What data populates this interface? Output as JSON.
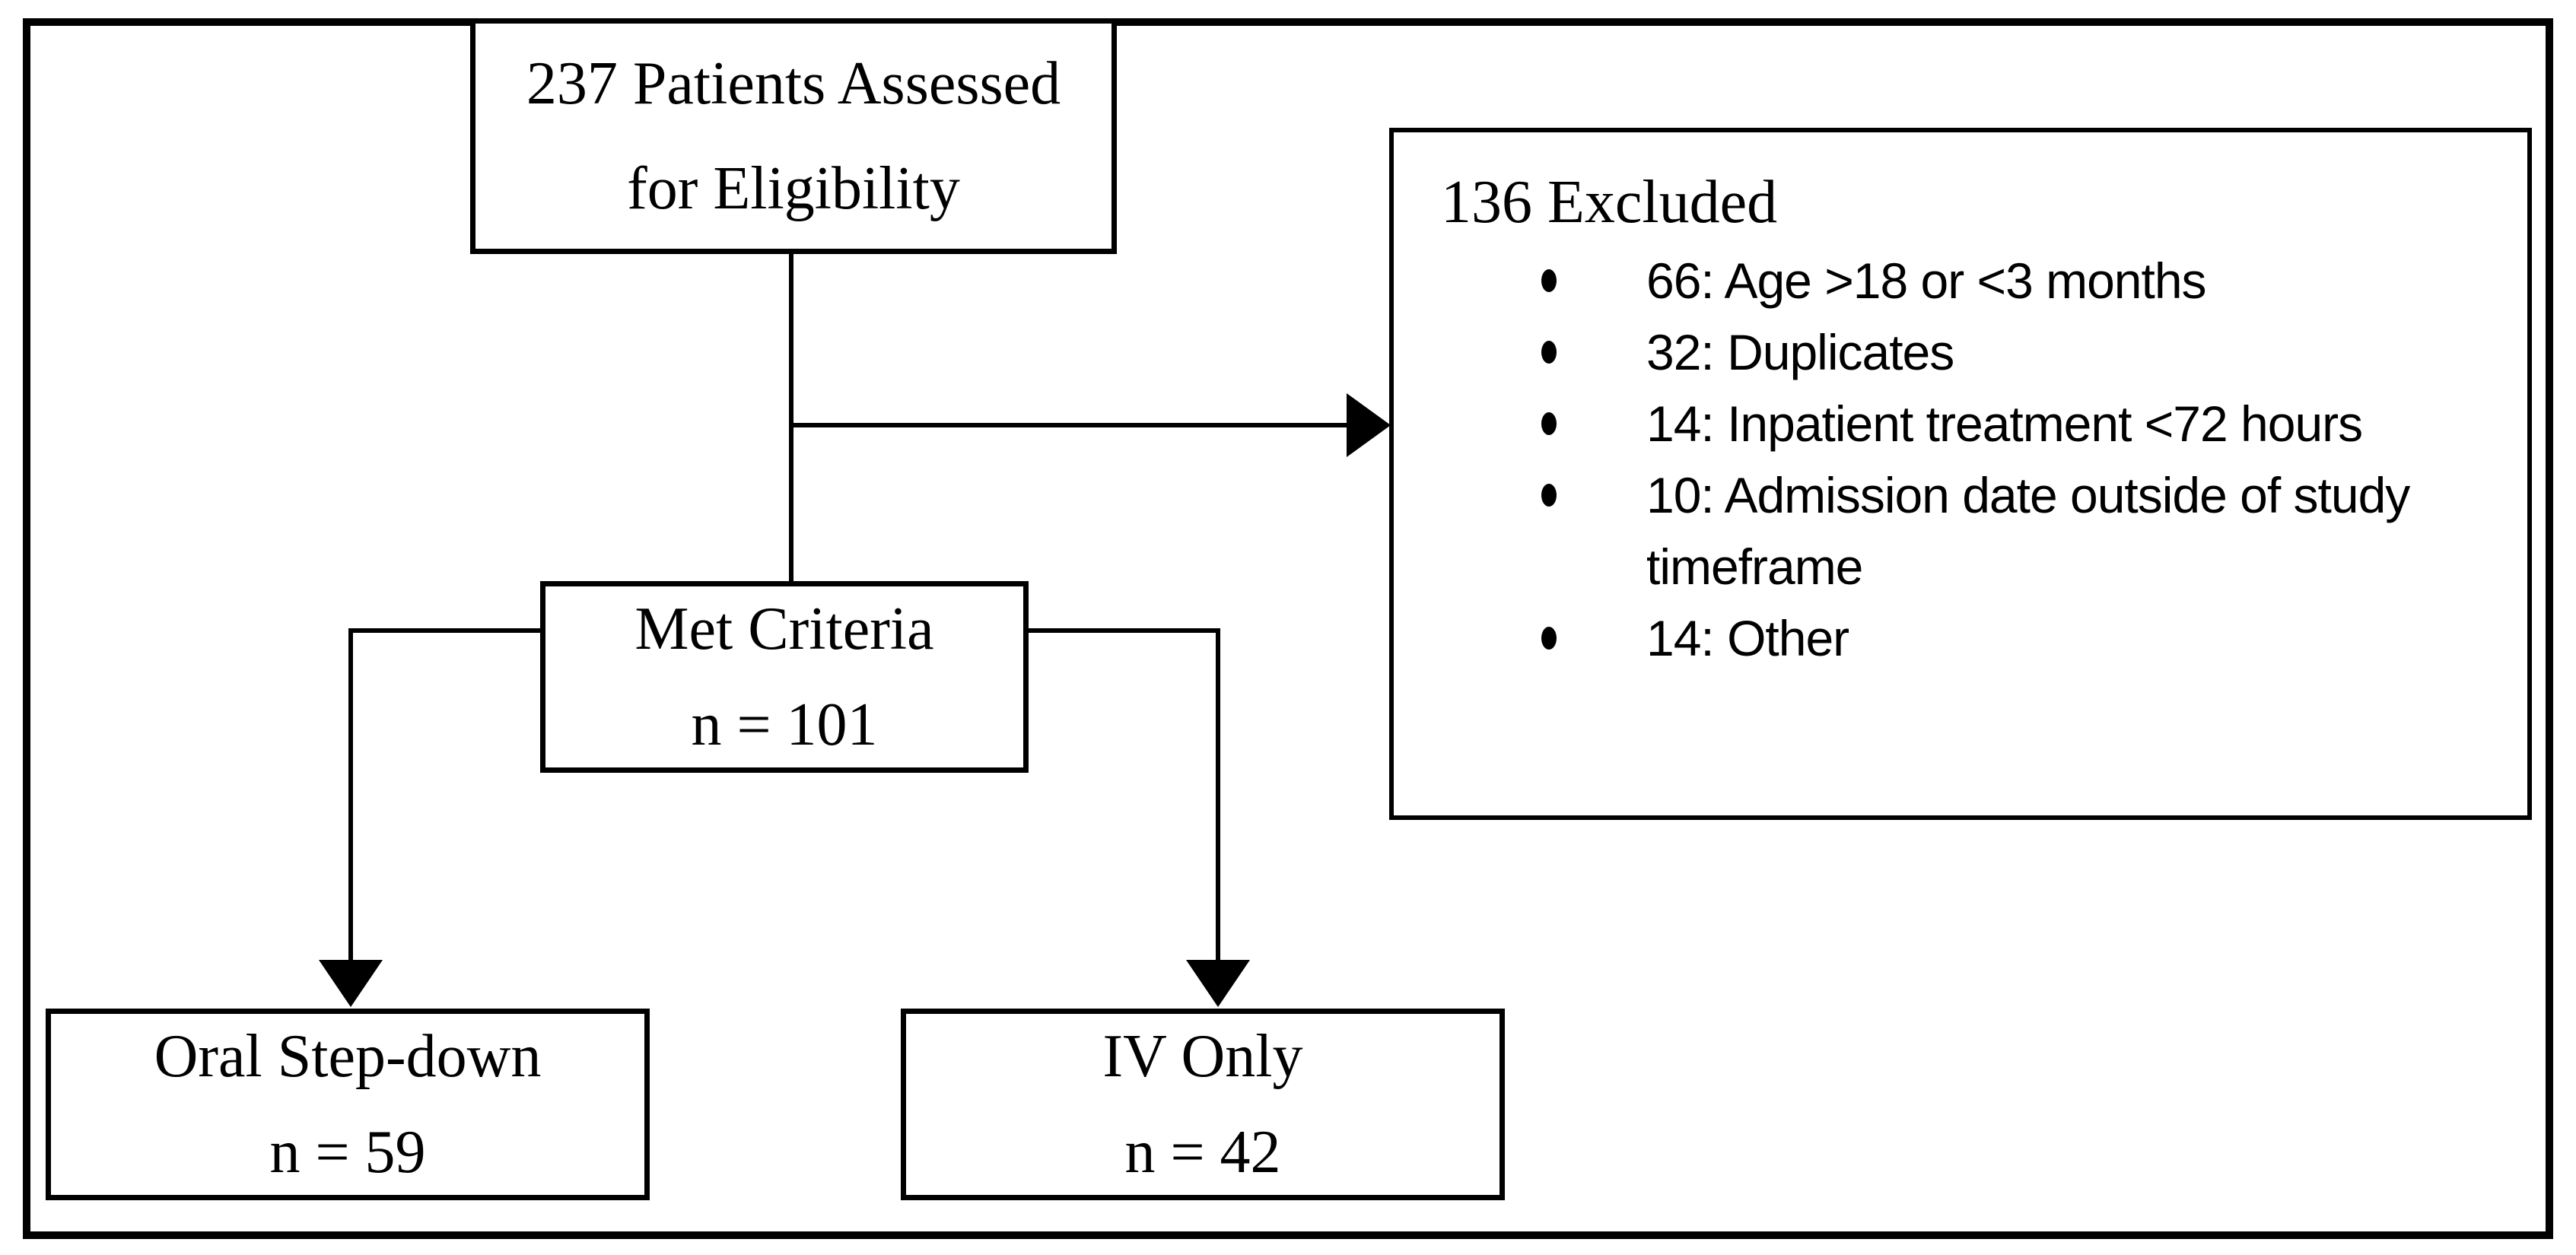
{
  "colors": {
    "line": "#000000",
    "background": "#ffffff",
    "text": "#000000"
  },
  "diagram": {
    "assessed_box": {
      "line1": "237 Patients Assessed",
      "line2": "for Eligibility"
    },
    "excluded_box": {
      "title": "136 Excluded",
      "items": [
        "66: Age >18 or <3 months",
        "32: Duplicates",
        "14: Inpatient treatment <72 hours",
        "10: Admission date outside of study timeframe",
        "14: Other"
      ]
    },
    "met_criteria_box": {
      "label": "Met Criteria",
      "count": "n = 101"
    },
    "oral_stepdown_box": {
      "label": "Oral Step-down",
      "count": "n = 59"
    },
    "iv_only_box": {
      "label": "IV Only",
      "count": "n = 42"
    }
  }
}
